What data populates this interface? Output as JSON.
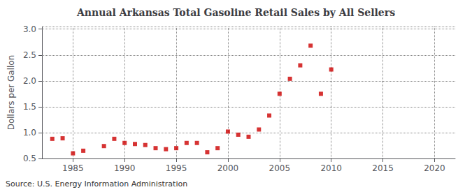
{
  "chart_data": {
    "type": "scatter",
    "title": "Annual Arkansas Total Gasoline Retail Sales by All Sellers",
    "ylabel": "Dollars per Gallon",
    "annotation": "Source: U.S. Energy Information Administration",
    "color": "#cc0000",
    "marker": "square",
    "grid": true,
    "xlim": [
      1982,
      2022
    ],
    "ylim": [
      0.5,
      3.05
    ],
    "xticks": [
      1985,
      1990,
      1995,
      2000,
      2005,
      2010,
      2015,
      2020
    ],
    "yticks": [
      0.5,
      {
        "value": 1,
        "label": "1.0"
      },
      1.5,
      {
        "value": 2,
        "label": "2.0"
      },
      2.5,
      {
        "value": 3,
        "label": "3.0"
      }
    ],
    "x": [
      1983,
      1984,
      1985,
      1986,
      1988,
      1989,
      1990,
      1991,
      1992,
      1993,
      1994,
      1995,
      1996,
      1997,
      1998,
      1999,
      2000,
      2001,
      2002,
      2003,
      2004,
      2005,
      2006,
      2007,
      2008,
      2009,
      2010
    ],
    "values": [
      0.88,
      0.89,
      0.6,
      0.65,
      0.74,
      0.88,
      0.8,
      0.78,
      0.76,
      0.7,
      0.68,
      0.7,
      0.8,
      0.8,
      0.62,
      0.7,
      1.02,
      0.96,
      0.92,
      1.06,
      1.33,
      1.75,
      2.04,
      2.3,
      2.68,
      1.75,
      2.22
    ]
  }
}
